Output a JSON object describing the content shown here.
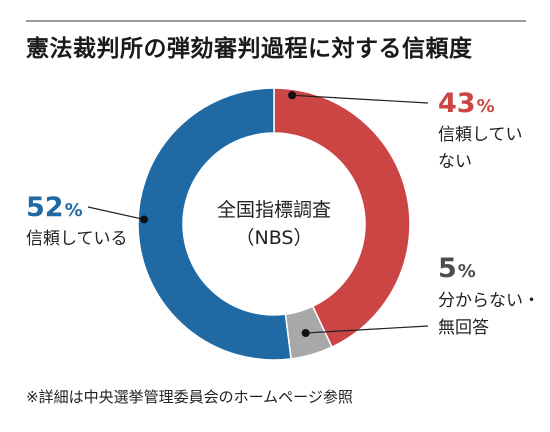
{
  "title": "憲法裁判所の弾劾審判過程に対する信頼度",
  "center_label": {
    "line1": "全国指標調査",
    "line2": "（NBS）"
  },
  "footnote": "※詳細は中央選挙管理委員会のホームページ参照",
  "chart_data": {
    "type": "pie",
    "title": "憲法裁判所の弾劾審判過程に対する信頼度",
    "unit": "%",
    "slices": [
      {
        "label": "信頼していない",
        "label_lines": [
          "信頼してい",
          "ない"
        ],
        "value": 43,
        "color": "#cc4545",
        "value_color": "#cc4545"
      },
      {
        "label": "分からない・無回答",
        "label_lines": [
          "分からない・",
          "無回答"
        ],
        "value": 5,
        "color": "#a8a8a8",
        "value_color": "#4d4d4d"
      },
      {
        "label": "信頼している",
        "label_lines": [
          "信頼している"
        ],
        "value": 52,
        "color": "#1f6aa5",
        "value_color": "#1f6aa5"
      }
    ]
  }
}
